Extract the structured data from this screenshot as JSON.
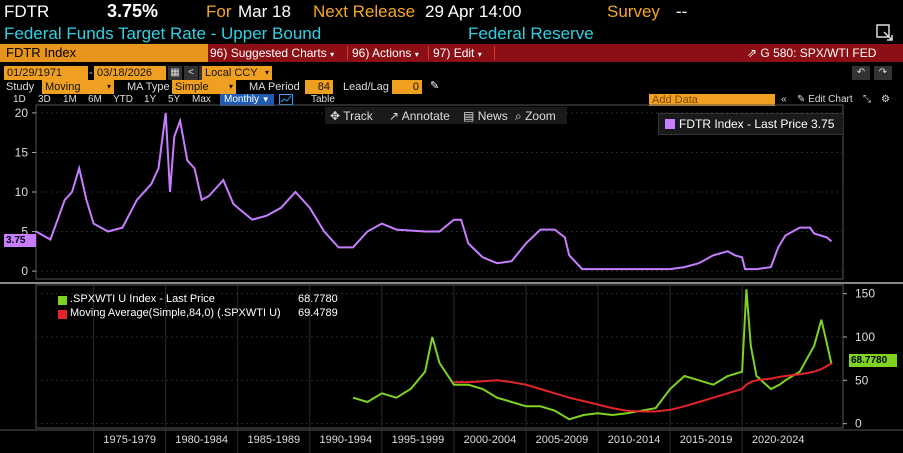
{
  "header": {
    "ticker": "FDTR",
    "last_value": "3.75%",
    "for_label": "For",
    "for_date": "Mar 18",
    "next_release_label": "Next Release",
    "next_release_date": "29 Apr 14:00",
    "survey_label": "Survey",
    "survey_value": "--",
    "description": "Federal Funds Target Rate - Upper Bound",
    "source": "Federal Reserve"
  },
  "redbar": {
    "security": "FDTR Index",
    "suggested_num": "96)",
    "suggested_label": "Suggested Charts",
    "actions_num": "96)",
    "actions_label": "Actions",
    "edit_num": "97)",
    "edit_label": "Edit",
    "chart_id": "G 580: SPX/WTI FED"
  },
  "controls": {
    "start_date": "01/29/1971",
    "end_date": "03/18/2026",
    "currency": "Local CCY",
    "study_label": "Study",
    "study_value": "Moving Aver",
    "ma_type_label": "MA Type",
    "ma_type_value": "Simple",
    "ma_period_label": "MA Period",
    "ma_period_value": "84",
    "lead_lag_label": "Lead/Lag",
    "lead_lag_value": "0",
    "add_data_placeholder": "Add Data",
    "edit_chart": "Edit Chart"
  },
  "periods": [
    "1D",
    "3D",
    "1M",
    "6M",
    "YTD",
    "1Y",
    "5Y",
    "Max"
  ],
  "frequency": "Monthly",
  "table_label": "Table",
  "chart_tools": {
    "track": "Track",
    "annotate": "Annotate",
    "news": "News",
    "zoom": "Zoom"
  },
  "legends": {
    "top": "FDTR Index - Last Price 3.75",
    "bottom_series1": ".SPXWTI U Index - Last Price",
    "bottom_value1": "68.7780",
    "bottom_series2": "Moving Average(Simple,84,0) (.SPXWTI U)",
    "bottom_value2": "69.4789"
  },
  "price_tags": {
    "top": "3.75",
    "bottom": "68.7780"
  },
  "colors": {
    "fdtr_line": "#c77dff",
    "spxwti_line": "#7ed321",
    "ma_line": "#e3242b",
    "accent": "#f0a020"
  },
  "chart_data": [
    {
      "type": "line",
      "title": "FDTR Index - Last Price 3.75",
      "ylim": [
        -1,
        21
      ],
      "yticks": [
        "0",
        "5",
        "10",
        "15",
        "20"
      ],
      "x": [
        1971,
        1972,
        1973,
        1973.5,
        1974,
        1974.5,
        1975,
        1976,
        1977,
        1978,
        1979,
        1979.5,
        1980,
        1980.3,
        1980.6,
        1981,
        1981.5,
        1982,
        1982.5,
        1983,
        1984,
        1984.7,
        1985,
        1986,
        1987,
        1988,
        1989,
        1990,
        1991,
        1992,
        1993,
        1994,
        1995,
        1996,
        1998,
        1999,
        2000,
        2000.5,
        2001,
        2002,
        2003,
        2004,
        2005,
        2006,
        2007,
        2007.7,
        2008,
        2008.9,
        2009,
        2012,
        2015,
        2016,
        2017,
        2018,
        2019,
        2019.5,
        2020,
        2020.2,
        2021,
        2022,
        2022.5,
        2023,
        2024,
        2024.7,
        2025,
        2025.9,
        2026.2
      ],
      "series": [
        {
          "name": "FDTR Index",
          "values": [
            5,
            4,
            9,
            10,
            13,
            9,
            6,
            5,
            5.5,
            9,
            11,
            13,
            20,
            10,
            17,
            19,
            14,
            13,
            9,
            9.5,
            11.5,
            8.5,
            8,
            6.5,
            7,
            8,
            10,
            8,
            5,
            3,
            3,
            5,
            6,
            5.25,
            5,
            5,
            6.5,
            6.5,
            3.5,
            1.75,
            1,
            1.25,
            3.5,
            5.25,
            5.25,
            4.25,
            2,
            0.25,
            0.25,
            0.25,
            0.25,
            0.5,
            1,
            2,
            2.5,
            2,
            1.75,
            0.25,
            0.25,
            0.5,
            3,
            4.5,
            5.5,
            5.5,
            4.75,
            4.25,
            3.75
          ]
        }
      ]
    },
    {
      "type": "line",
      "title": ".SPXWTI U Index",
      "ylim": [
        -5,
        160
      ],
      "yticks": [
        "0",
        "50",
        "100",
        "150"
      ],
      "xlabels": [
        "1975-1979",
        "1980-1984",
        "1985-1989",
        "1990-1994",
        "1995-1999",
        "2000-2004",
        "2005-2009",
        "2010-2014",
        "2015-2019",
        "2020-2024"
      ],
      "x": [
        1993,
        1994,
        1995,
        1996,
        1997,
        1998,
        1998.5,
        1999,
        2000,
        2001,
        2002,
        2003,
        2004,
        2005,
        2006,
        2007,
        2008,
        2009,
        2010,
        2011,
        2012,
        2013,
        2014,
        2015,
        2016,
        2017,
        2018,
        2019,
        2020,
        2020.3,
        2020.6,
        2021,
        2022,
        2022.6,
        2023,
        2024,
        2025,
        2025.5,
        2026.2
      ],
      "series": [
        {
          "name": ".SPXWTI U Index - Last Price",
          "values": [
            30,
            25,
            35,
            30,
            40,
            60,
            100,
            70,
            45,
            45,
            40,
            30,
            25,
            20,
            20,
            15,
            5,
            10,
            12,
            10,
            12,
            15,
            18,
            40,
            55,
            50,
            45,
            55,
            60,
            155,
            90,
            55,
            40,
            45,
            50,
            60,
            90,
            120,
            68.8
          ]
        },
        {
          "name": "Moving Average(Simple,84,0) (.SPXWTI U)",
          "values": [
            null,
            null,
            null,
            null,
            null,
            null,
            null,
            null,
            48,
            48,
            49,
            50,
            48,
            45,
            40,
            35,
            30,
            26,
            22,
            18,
            15,
            14,
            14,
            16,
            20,
            25,
            30,
            35,
            40,
            45,
            48,
            50,
            52,
            54,
            55,
            57,
            60,
            63,
            69.5
          ]
        }
      ]
    }
  ]
}
